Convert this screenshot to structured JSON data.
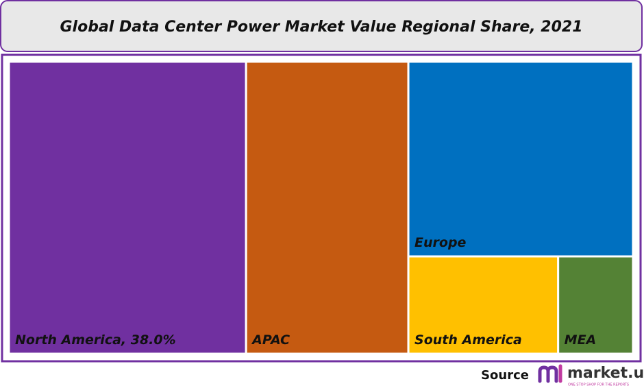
{
  "chart_data": {
    "type": "treemap",
    "title": "Global Data Center Power Market Value Regional Share, 2021",
    "categories": [
      "North America",
      "APAC",
      "Europe",
      "South America",
      "MEA"
    ],
    "values": [
      38.0,
      26.0,
      24.0,
      8.0,
      4.0
    ],
    "value_labels": [
      ", 38.0%",
      null,
      null,
      null,
      null
    ],
    "colors": [
      "#7030a0",
      "#c55a11",
      "#0070c0",
      "#ffc000",
      "#548235"
    ]
  },
  "source": {
    "label": "Source",
    "brand": "market.us",
    "tagline": "ONE STOP SHOP FOR THE REPORTS"
  }
}
